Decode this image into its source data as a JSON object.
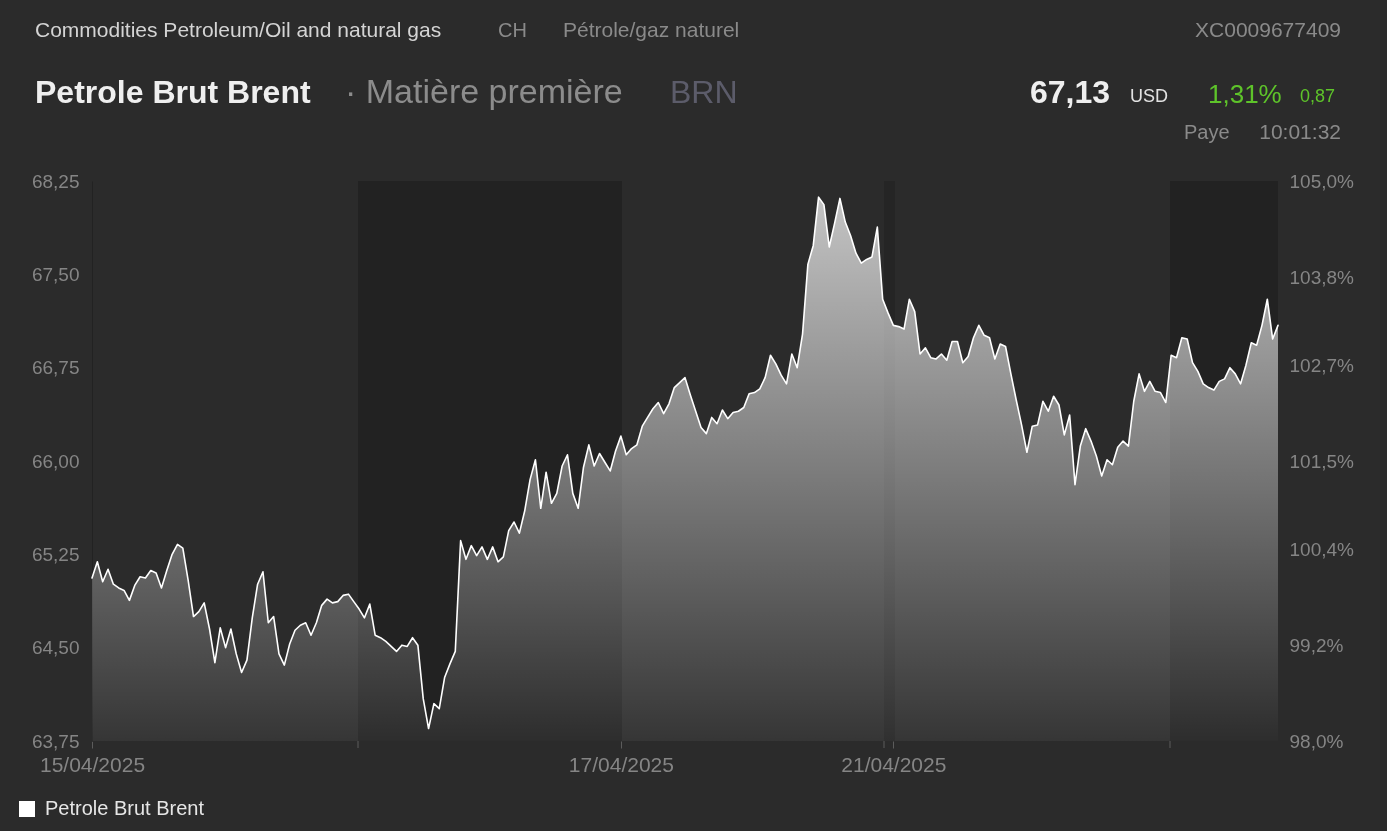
{
  "chart_data": {
    "type": "area",
    "title": "Petrole Brut Brent",
    "annotations": [
      "Commodities Petroleum/Oil and natural gas",
      "CH",
      "Pétrole/gaz naturel",
      "XC0009677409",
      "· Matière première",
      "BRN",
      "67,13",
      "USD",
      "1,31%",
      "0,87",
      "Paye",
      "10:01:32"
    ],
    "categories": [
      "15/04/2025",
      null,
      null,
      null,
      null,
      null,
      null,
      null,
      null,
      null,
      null,
      null,
      null,
      null,
      null,
      null,
      null,
      null,
      null,
      null,
      null,
      null,
      null,
      null,
      null,
      null,
      null,
      null,
      null,
      null,
      null,
      null,
      null,
      null,
      null,
      null,
      null,
      null,
      null,
      null,
      null,
      null,
      null,
      null,
      null,
      null,
      null,
      null,
      null,
      null,
      null,
      null,
      null,
      null,
      null,
      null,
      null,
      null,
      null,
      null,
      null,
      null,
      null,
      null,
      null,
      null,
      null,
      null,
      null,
      null,
      null,
      null,
      null,
      null,
      null,
      null,
      null,
      null,
      null,
      null,
      null,
      null,
      null,
      null,
      null,
      null,
      null,
      null,
      null,
      null,
      null,
      null,
      null,
      null,
      null,
      null,
      null,
      null,
      null,
      "17/04/2025",
      null,
      null,
      null,
      null,
      null,
      null,
      null,
      null,
      null,
      null,
      null,
      null,
      null,
      null,
      null,
      null,
      null,
      null,
      null,
      null,
      null,
      null,
      null,
      null,
      null,
      null,
      null,
      null,
      null,
      null,
      null,
      null,
      null,
      null,
      null,
      null,
      null,
      null,
      null,
      null,
      null,
      null,
      null,
      null,
      null,
      null,
      null,
      null,
      null,
      null,
      "21/04/2025",
      null,
      null,
      null,
      null,
      null,
      null,
      null,
      null,
      null,
      null,
      null,
      null,
      null,
      null,
      null,
      null,
      null,
      null,
      null,
      null,
      null,
      null,
      null,
      null,
      null,
      null,
      null,
      null,
      null,
      null,
      null,
      null,
      null,
      null,
      null,
      null,
      null,
      null,
      null,
      null,
      null,
      null,
      null,
      null,
      null,
      null,
      null,
      null,
      null,
      null,
      null,
      null,
      null,
      null,
      null,
      null,
      null,
      null,
      null,
      null,
      null,
      null,
      null,
      null,
      null,
      null,
      null,
      null,
      null,
      null,
      null,
      null
    ],
    "series": [
      {
        "name": "Petrole Brut Brent",
        "color": "#ffffff",
        "values": [
          65.06,
          65.19,
          65.03,
          65.13,
          65.01,
          64.98,
          64.96,
          64.88,
          65.0,
          65.07,
          65.06,
          65.12,
          65.1,
          64.98,
          65.12,
          65.25,
          65.33,
          65.3,
          65.04,
          64.75,
          64.79,
          64.86,
          64.65,
          64.38,
          64.66,
          64.5,
          64.65,
          64.45,
          64.3,
          64.4,
          64.74,
          65.01,
          65.11,
          64.7,
          64.75,
          64.45,
          64.36,
          64.53,
          64.64,
          64.68,
          64.7,
          64.6,
          64.7,
          64.84,
          64.89,
          64.86,
          64.87,
          64.92,
          64.93,
          64.87,
          64.81,
          64.74,
          64.85,
          64.6,
          64.58,
          64.55,
          64.51,
          64.47,
          64.52,
          64.51,
          64.58,
          64.52,
          64.09,
          63.85,
          64.05,
          64.01,
          64.26,
          64.37,
          64.47,
          65.36,
          65.21,
          65.32,
          65.24,
          65.31,
          65.21,
          65.31,
          65.19,
          65.23,
          65.44,
          65.51,
          65.42,
          65.6,
          65.85,
          66.01,
          65.62,
          65.91,
          65.66,
          65.74,
          65.96,
          66.05,
          65.74,
          65.62,
          65.95,
          66.13,
          65.96,
          66.06,
          65.99,
          65.92,
          66.08,
          66.2,
          66.05,
          66.1,
          66.13,
          66.28,
          66.35,
          66.42,
          66.47,
          66.38,
          66.46,
          66.59,
          66.63,
          66.67,
          66.53,
          66.4,
          66.27,
          66.22,
          66.35,
          66.3,
          66.41,
          66.34,
          66.39,
          66.4,
          66.43,
          66.54,
          66.55,
          66.58,
          66.67,
          66.85,
          66.78,
          66.69,
          66.62,
          66.86,
          66.75,
          67.02,
          67.58,
          67.73,
          68.12,
          68.06,
          67.72,
          67.91,
          68.11,
          67.92,
          67.81,
          67.67,
          67.59,
          67.62,
          67.64,
          67.88,
          67.3,
          67.19,
          67.09,
          67.08,
          67.06,
          67.3,
          67.2,
          66.86,
          66.91,
          66.83,
          66.82,
          66.86,
          66.81,
          66.96,
          66.96,
          66.79,
          66.84,
          66.99,
          67.09,
          67.01,
          66.99,
          66.82,
          66.94,
          66.92,
          66.7,
          66.49,
          66.29,
          66.07,
          66.28,
          66.29,
          66.48,
          66.4,
          66.52,
          66.45,
          66.21,
          66.37,
          65.81,
          66.12,
          66.26,
          66.16,
          66.04,
          65.88,
          66.01,
          65.97,
          66.11,
          66.16,
          66.12,
          66.48,
          66.7,
          66.56,
          66.64,
          66.56,
          66.55,
          66.47,
          66.85,
          66.83,
          66.99,
          66.98,
          66.79,
          66.72,
          66.62,
          66.59,
          66.57,
          66.64,
          66.66,
          66.75,
          66.7,
          66.62,
          66.77,
          66.95,
          66.93,
          67.09,
          67.3,
          66.98,
          67.09
        ]
      }
    ],
    "ylim": [
      63.75,
      68.25
    ],
    "yticks": [
      {
        "value": 63.75,
        "label": "63,75"
      },
      {
        "value": 64.5,
        "label": "64,50"
      },
      {
        "value": 65.25,
        "label": "65,25"
      },
      {
        "value": 66.0,
        "label": "66,00"
      },
      {
        "value": 66.75,
        "label": "66,75"
      },
      {
        "value": 67.5,
        "label": "67,50"
      },
      {
        "value": 68.25,
        "label": "68,25"
      }
    ],
    "y2lim": [
      98.0,
      105.0
    ],
    "y2ticks": [
      {
        "value": 98.0,
        "label": "98,0%"
      },
      {
        "value": 99.2,
        "label": "99,2%"
      },
      {
        "value": 100.4,
        "label": "100,4%"
      },
      {
        "value": 101.5,
        "label": "101,5%"
      },
      {
        "value": 102.7,
        "label": "102,7%"
      },
      {
        "value": 103.8,
        "label": "103,8%"
      },
      {
        "value": 105.0,
        "label": "105,0%"
      }
    ],
    "legend": "bottom left"
  }
}
